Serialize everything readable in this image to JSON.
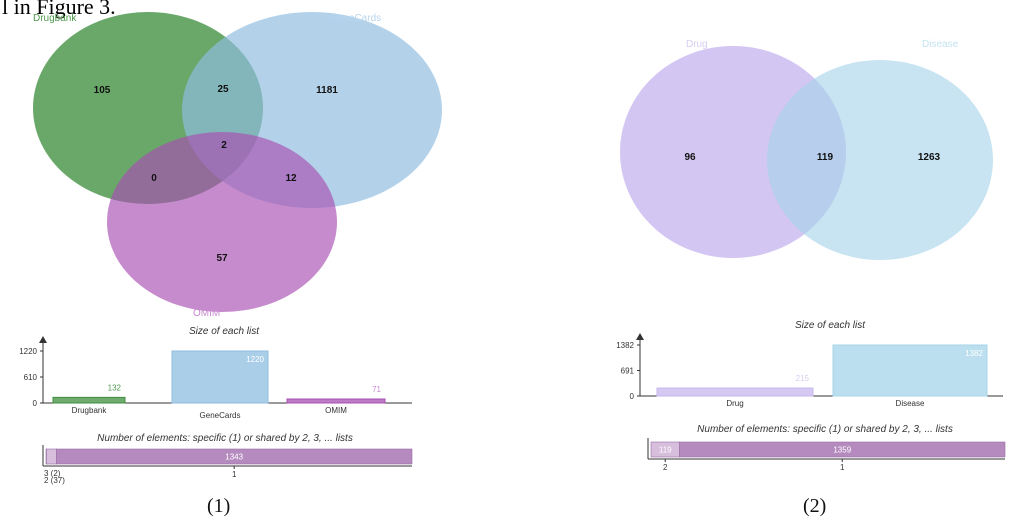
{
  "caption_fragment": "l in Figure 3.",
  "panel1": {
    "label": "(1)",
    "sets": [
      {
        "name": "Drugbank",
        "color": "#3f8f3f",
        "text_color": "#4f9a4f"
      },
      {
        "name": "GeneCards",
        "color": "#8fbde0",
        "text_color": "#b9d5ee"
      },
      {
        "name": "OMIM",
        "color": "#a84fb2",
        "text_color": "#c88ad0"
      }
    ],
    "regions": {
      "drugbank_only": "105",
      "genecards_only": "1181",
      "omim_only": "57",
      "drugbank_genecards": "25",
      "drugbank_omim": "0",
      "genecards_omim": "12",
      "all_three": "2"
    },
    "size_chart": {
      "title": "Size of each list",
      "ticks": [
        "1220",
        "610",
        "0"
      ],
      "ymax": 1220,
      "bars": [
        {
          "label": "Drugbank",
          "value": 132,
          "value_label": "132"
        },
        {
          "label": "GeneCards",
          "value": 1220,
          "value_label": "1220"
        },
        {
          "label": "OMIM",
          "value": 71,
          "value_label": "71"
        }
      ]
    },
    "shared_chart": {
      "title": "Number of elements: specific (1) or shared by 2, 3, ... lists",
      "total": 1382,
      "segments": [
        {
          "key": "3",
          "value": 2
        },
        {
          "key": "2",
          "value": 37
        },
        {
          "key": "1",
          "value": 1343,
          "value_label": "1343",
          "tick": "1"
        }
      ],
      "low_labels": [
        "3 (2)",
        "2 (37)"
      ]
    }
  },
  "panel2": {
    "label": "(2)",
    "sets": [
      {
        "name": "Drug",
        "color": "#c7b6ee",
        "text_color": "#d8ccf2"
      },
      {
        "name": "Disease",
        "color": "#a6d4ea",
        "text_color": "#c5e3f1"
      }
    ],
    "regions": {
      "drug_only": "96",
      "both": "119",
      "disease_only": "1263"
    },
    "size_chart": {
      "title": "Size of each list",
      "ticks": [
        "1382",
        "691",
        "0"
      ],
      "ymax": 1382,
      "bars": [
        {
          "label": "Drug",
          "value": 215,
          "value_label": "215"
        },
        {
          "label": "Disease",
          "value": 1382,
          "value_label": "1382"
        }
      ]
    },
    "shared_chart": {
      "title": "Number of elements: specific (1) or shared by 2, 3, ... lists",
      "total": 1478,
      "segments": [
        {
          "key": "2",
          "value": 119,
          "value_label": "119",
          "tick": "2"
        },
        {
          "key": "1",
          "value": 1359,
          "value_label": "1359",
          "tick": "1"
        }
      ]
    }
  }
}
